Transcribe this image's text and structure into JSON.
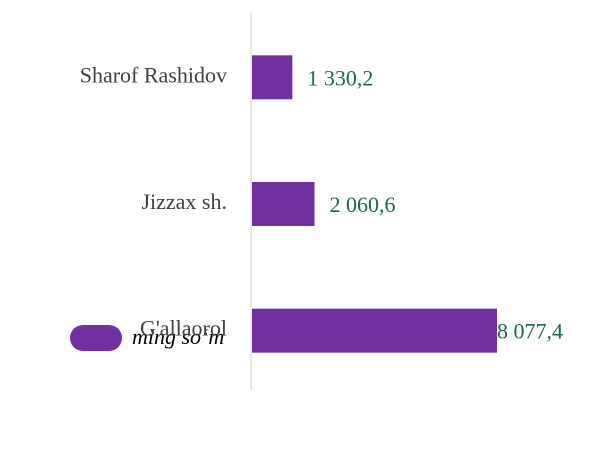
{
  "chart_data": {
    "type": "hbar",
    "categories": [
      "Sharof Rashidov",
      "Jizzax sh.",
      "G'allaorol"
    ],
    "series": [
      {
        "name": "ming so‘m",
        "color": "#7030a0",
        "values": [
          1330.2,
          2060.6,
          8077.4
        ],
        "value_labels": [
          "1 330,2",
          "2 060,6",
          "8 077,4"
        ]
      }
    ]
  }
}
